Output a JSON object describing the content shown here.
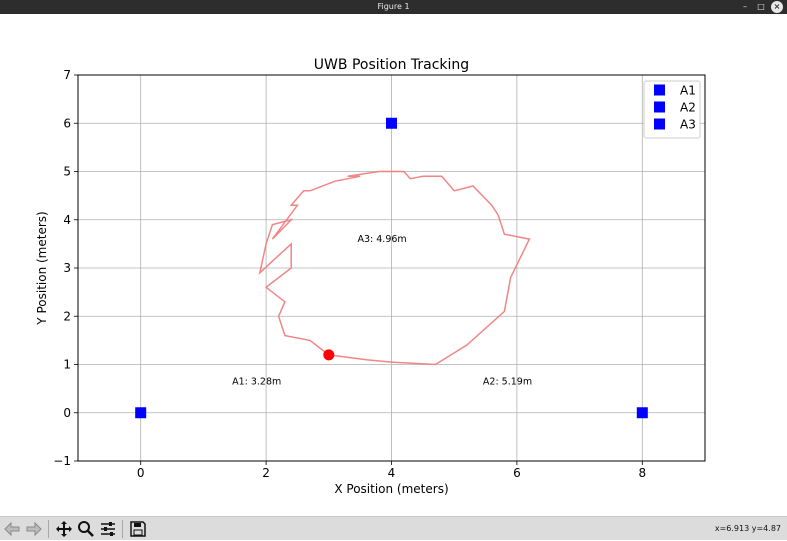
{
  "window": {
    "title": "Figure 1"
  },
  "toolbar": {
    "buttons": [
      "back-icon",
      "forward-icon",
      "pan-icon",
      "zoom-icon",
      "configure-icon",
      "save-icon"
    ],
    "coords_text": "x=6.913 y=4.87"
  },
  "chart_data": {
    "type": "scatter",
    "title": "UWB Position Tracking",
    "xlabel": "X Position (meters)",
    "ylabel": "Y Position (meters)",
    "xlim": [
      -1,
      9
    ],
    "ylim": [
      -1,
      7
    ],
    "xticks": [
      0,
      2,
      4,
      6,
      8
    ],
    "yticks": [
      -1,
      0,
      1,
      2,
      3,
      4,
      5,
      6,
      7
    ],
    "grid": true,
    "legend_position": "top-right",
    "anchors": [
      {
        "name": "A1",
        "x": 0,
        "y": 0,
        "color": "#0000ff"
      },
      {
        "name": "A2",
        "x": 8,
        "y": 0,
        "color": "#0000ff"
      },
      {
        "name": "A3",
        "x": 4,
        "y": 6,
        "color": "#0000ff"
      }
    ],
    "distance_labels": [
      {
        "text": "A1: 3.28m",
        "x": 1.85,
        "y": 0.65
      },
      {
        "text": "A2: 5.19m",
        "x": 5.85,
        "y": 0.65
      },
      {
        "text": "A3: 4.96m",
        "x": 3.85,
        "y": 3.6
      }
    ],
    "trajectory": {
      "color": "#f08080",
      "x": [
        3.0,
        2.7,
        2.3,
        2.2,
        2.3,
        2.0,
        2.4,
        2.4,
        1.9,
        2.0,
        2.1,
        2.4,
        2.1,
        2.5,
        2.4,
        2.6,
        2.7,
        3.1,
        3.5,
        3.3,
        3.8,
        4.2,
        4.3,
        4.5,
        4.8,
        5.0,
        5.3,
        5.6,
        5.7,
        5.8,
        6.2,
        5.9,
        5.8,
        5.2,
        4.7,
        4.0,
        3.6,
        3.0
      ],
      "y": [
        1.2,
        1.5,
        1.6,
        2.0,
        2.3,
        2.6,
        3.0,
        3.5,
        2.9,
        3.5,
        3.9,
        4.0,
        3.6,
        4.3,
        4.3,
        4.6,
        4.6,
        4.8,
        4.9,
        4.9,
        5.0,
        5.0,
        4.85,
        4.9,
        4.9,
        4.6,
        4.7,
        4.3,
        4.1,
        3.7,
        3.6,
        2.8,
        2.1,
        1.4,
        1.0,
        1.05,
        1.1,
        1.2
      ]
    },
    "current_position": {
      "x": 3.0,
      "y": 1.2,
      "color": "#ff0000"
    }
  }
}
